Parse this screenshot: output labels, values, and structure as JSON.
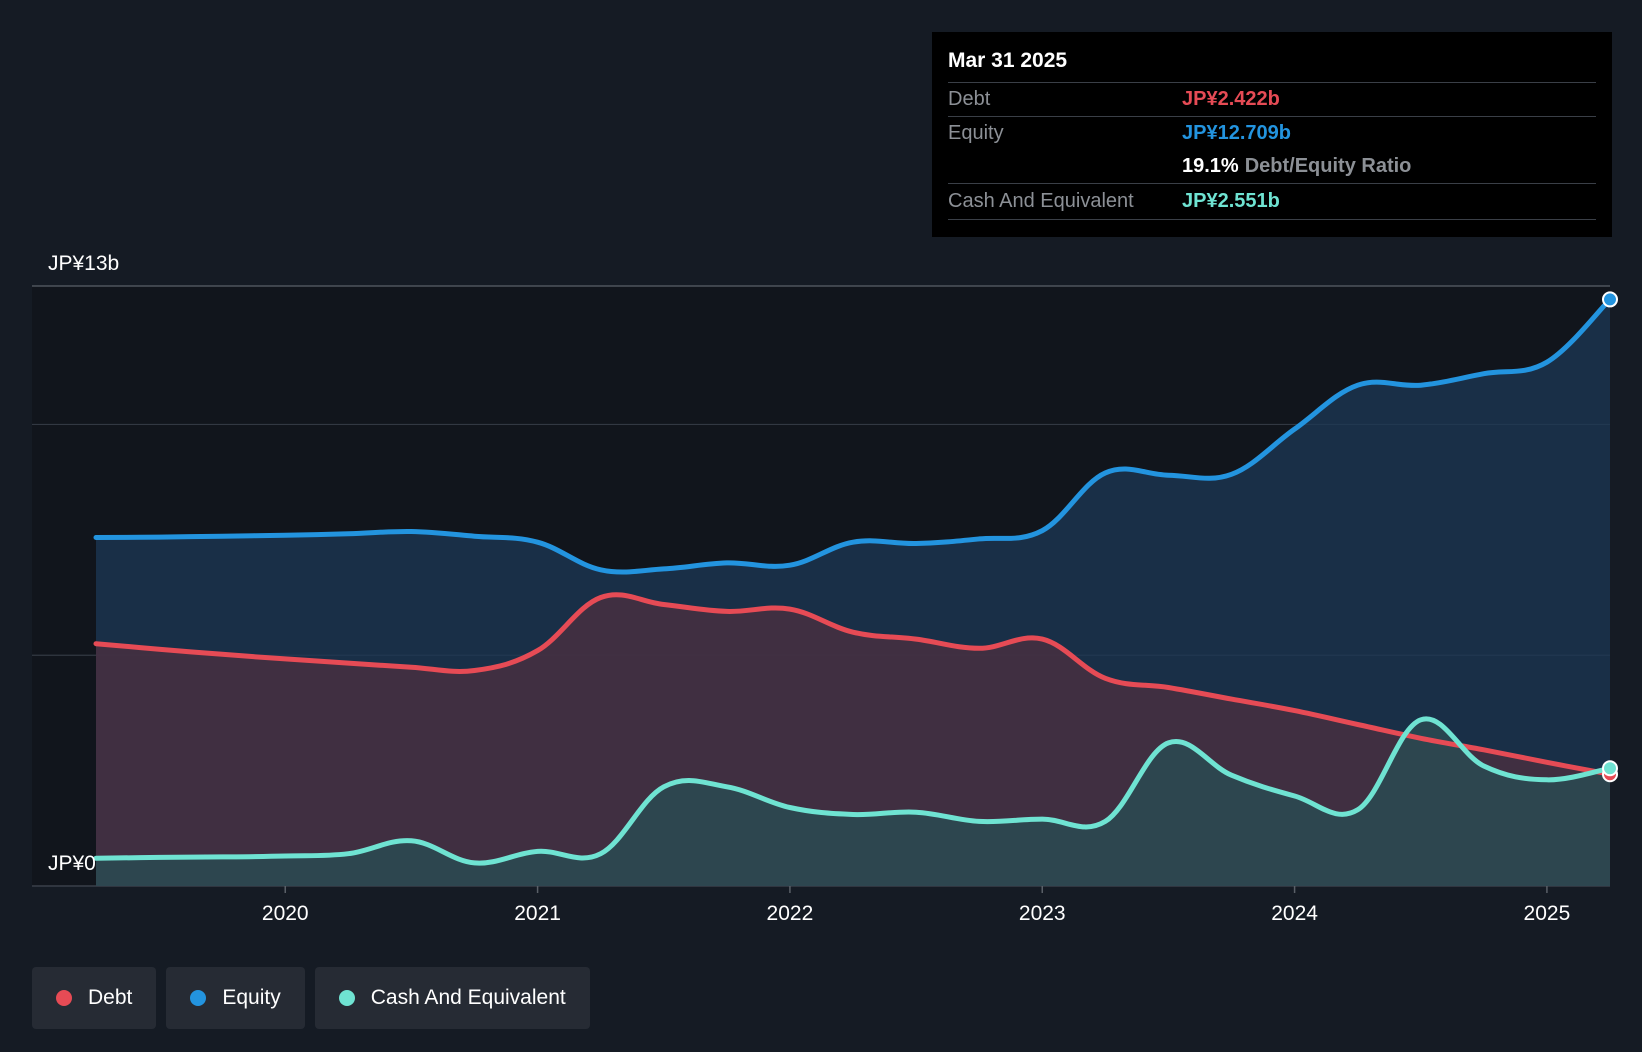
{
  "colors": {
    "debt": "#e64b55",
    "equity": "#2394df",
    "cash": "#6fe3d2",
    "background": "#151b24",
    "grid": "#3a404a"
  },
  "tooltip": {
    "date": "Mar 31 2025",
    "debt_label": "Debt",
    "debt_value": "JP¥2.422b",
    "equity_label": "Equity",
    "equity_value": "JP¥12.709b",
    "ratio_value": "19.1%",
    "ratio_label": "Debt/Equity Ratio",
    "cash_label": "Cash And Equivalent",
    "cash_value": "JP¥2.551b"
  },
  "legend": {
    "debt": "Debt",
    "equity": "Equity",
    "cash": "Cash And Equivalent"
  },
  "chart_data": {
    "type": "area",
    "title": "",
    "xlabel": "",
    "ylabel": "",
    "y_top_label": "JP¥13b",
    "y_bottom_label": "JP¥0",
    "ylim": [
      0,
      13
    ],
    "xlim": [
      2019.25,
      2025.25
    ],
    "x_ticks": [
      {
        "value": 2020,
        "label": "2020"
      },
      {
        "value": 2021,
        "label": "2021"
      },
      {
        "value": 2022,
        "label": "2022"
      },
      {
        "value": 2023,
        "label": "2023"
      },
      {
        "value": 2024,
        "label": "2024"
      },
      {
        "value": 2025,
        "label": "2025"
      }
    ],
    "gridlines": [
      13,
      10,
      5
    ],
    "series": [
      {
        "name": "Equity",
        "key": "equity",
        "points": [
          [
            2019.25,
            7.55
          ],
          [
            2019.5,
            7.56
          ],
          [
            2019.75,
            7.58
          ],
          [
            2020.0,
            7.6
          ],
          [
            2020.25,
            7.63
          ],
          [
            2020.5,
            7.68
          ],
          [
            2020.75,
            7.58
          ],
          [
            2021.0,
            7.45
          ],
          [
            2021.25,
            6.85
          ],
          [
            2021.5,
            6.87
          ],
          [
            2021.75,
            7.0
          ],
          [
            2022.0,
            6.95
          ],
          [
            2022.25,
            7.45
          ],
          [
            2022.5,
            7.42
          ],
          [
            2022.75,
            7.52
          ],
          [
            2023.0,
            7.7
          ],
          [
            2023.25,
            8.95
          ],
          [
            2023.5,
            8.9
          ],
          [
            2023.75,
            8.92
          ],
          [
            2024.0,
            9.9
          ],
          [
            2024.25,
            10.85
          ],
          [
            2024.5,
            10.85
          ],
          [
            2024.75,
            11.1
          ],
          [
            2025.0,
            11.35
          ],
          [
            2025.25,
            12.709
          ]
        ]
      },
      {
        "name": "Debt",
        "key": "debt",
        "points": [
          [
            2019.25,
            5.25
          ],
          [
            2019.5,
            5.13
          ],
          [
            2019.75,
            5.02
          ],
          [
            2020.0,
            4.92
          ],
          [
            2020.25,
            4.83
          ],
          [
            2020.5,
            4.74
          ],
          [
            2020.75,
            4.67
          ],
          [
            2021.0,
            5.1
          ],
          [
            2021.25,
            6.25
          ],
          [
            2021.5,
            6.1
          ],
          [
            2021.75,
            5.95
          ],
          [
            2022.0,
            6.0
          ],
          [
            2022.25,
            5.5
          ],
          [
            2022.5,
            5.35
          ],
          [
            2022.75,
            5.15
          ],
          [
            2023.0,
            5.35
          ],
          [
            2023.25,
            4.5
          ],
          [
            2023.5,
            4.3
          ],
          [
            2023.75,
            4.05
          ],
          [
            2024.0,
            3.8
          ],
          [
            2024.25,
            3.5
          ],
          [
            2024.5,
            3.2
          ],
          [
            2024.75,
            2.95
          ],
          [
            2025.0,
            2.68
          ],
          [
            2025.25,
            2.422
          ]
        ]
      },
      {
        "name": "Cash And Equivalent",
        "key": "cash",
        "points": [
          [
            2019.25,
            0.6
          ],
          [
            2019.5,
            0.62
          ],
          [
            2019.75,
            0.63
          ],
          [
            2020.0,
            0.65
          ],
          [
            2020.25,
            0.7
          ],
          [
            2020.5,
            0.98
          ],
          [
            2020.75,
            0.5
          ],
          [
            2021.0,
            0.75
          ],
          [
            2021.25,
            0.7
          ],
          [
            2021.5,
            2.15
          ],
          [
            2021.75,
            2.15
          ],
          [
            2022.0,
            1.7
          ],
          [
            2022.25,
            1.55
          ],
          [
            2022.5,
            1.6
          ],
          [
            2022.75,
            1.4
          ],
          [
            2023.0,
            1.45
          ],
          [
            2023.25,
            1.4
          ],
          [
            2023.5,
            3.1
          ],
          [
            2023.75,
            2.4
          ],
          [
            2024.0,
            1.95
          ],
          [
            2024.25,
            1.65
          ],
          [
            2024.5,
            3.6
          ],
          [
            2024.75,
            2.6
          ],
          [
            2025.0,
            2.3
          ],
          [
            2025.25,
            2.551
          ]
        ]
      }
    ]
  }
}
